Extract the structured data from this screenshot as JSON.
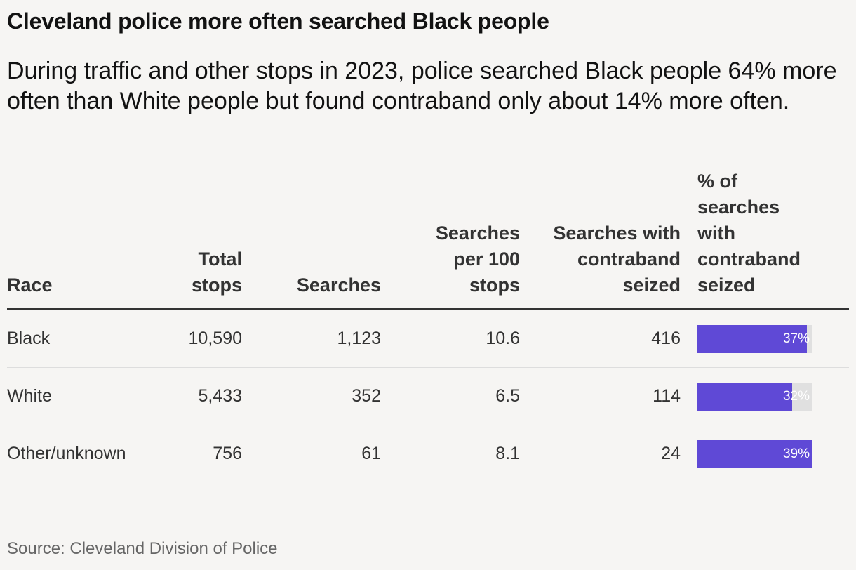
{
  "title": "Cleveland police more often searched Black people",
  "subtitle": "During traffic and other stops in 2023, police searched Black people 64% more often than White people but found contraband only about 14% more often.",
  "source": "Source: Cleveland Division of Police",
  "colors": {
    "bar_fill": "#5f49d6",
    "bar_track": "#e0e0e0",
    "background": "#f6f5f3"
  },
  "chart_data": {
    "type": "table",
    "title": "Cleveland police more often searched Black people",
    "columns": [
      "Race",
      "Total stops",
      "Searches",
      "Searches per 100 stops",
      "Searches with contraband seized",
      "% of searches with contraband seized"
    ],
    "rows": [
      {
        "race": "Black",
        "total_stops": "10,590",
        "searches": "1,123",
        "per_100": "10.6",
        "contraband": "416",
        "pct": 37,
        "pct_label": "37%"
      },
      {
        "race": "White",
        "total_stops": "5,433",
        "searches": "352",
        "per_100": "6.5",
        "contraband": "114",
        "pct": 32,
        "pct_label": "32%"
      },
      {
        "race": "Other/unknown",
        "total_stops": "756",
        "searches": "61",
        "per_100": "8.1",
        "contraband": "24",
        "pct": 39,
        "pct_label": "39%"
      }
    ],
    "bar_max": 39
  }
}
